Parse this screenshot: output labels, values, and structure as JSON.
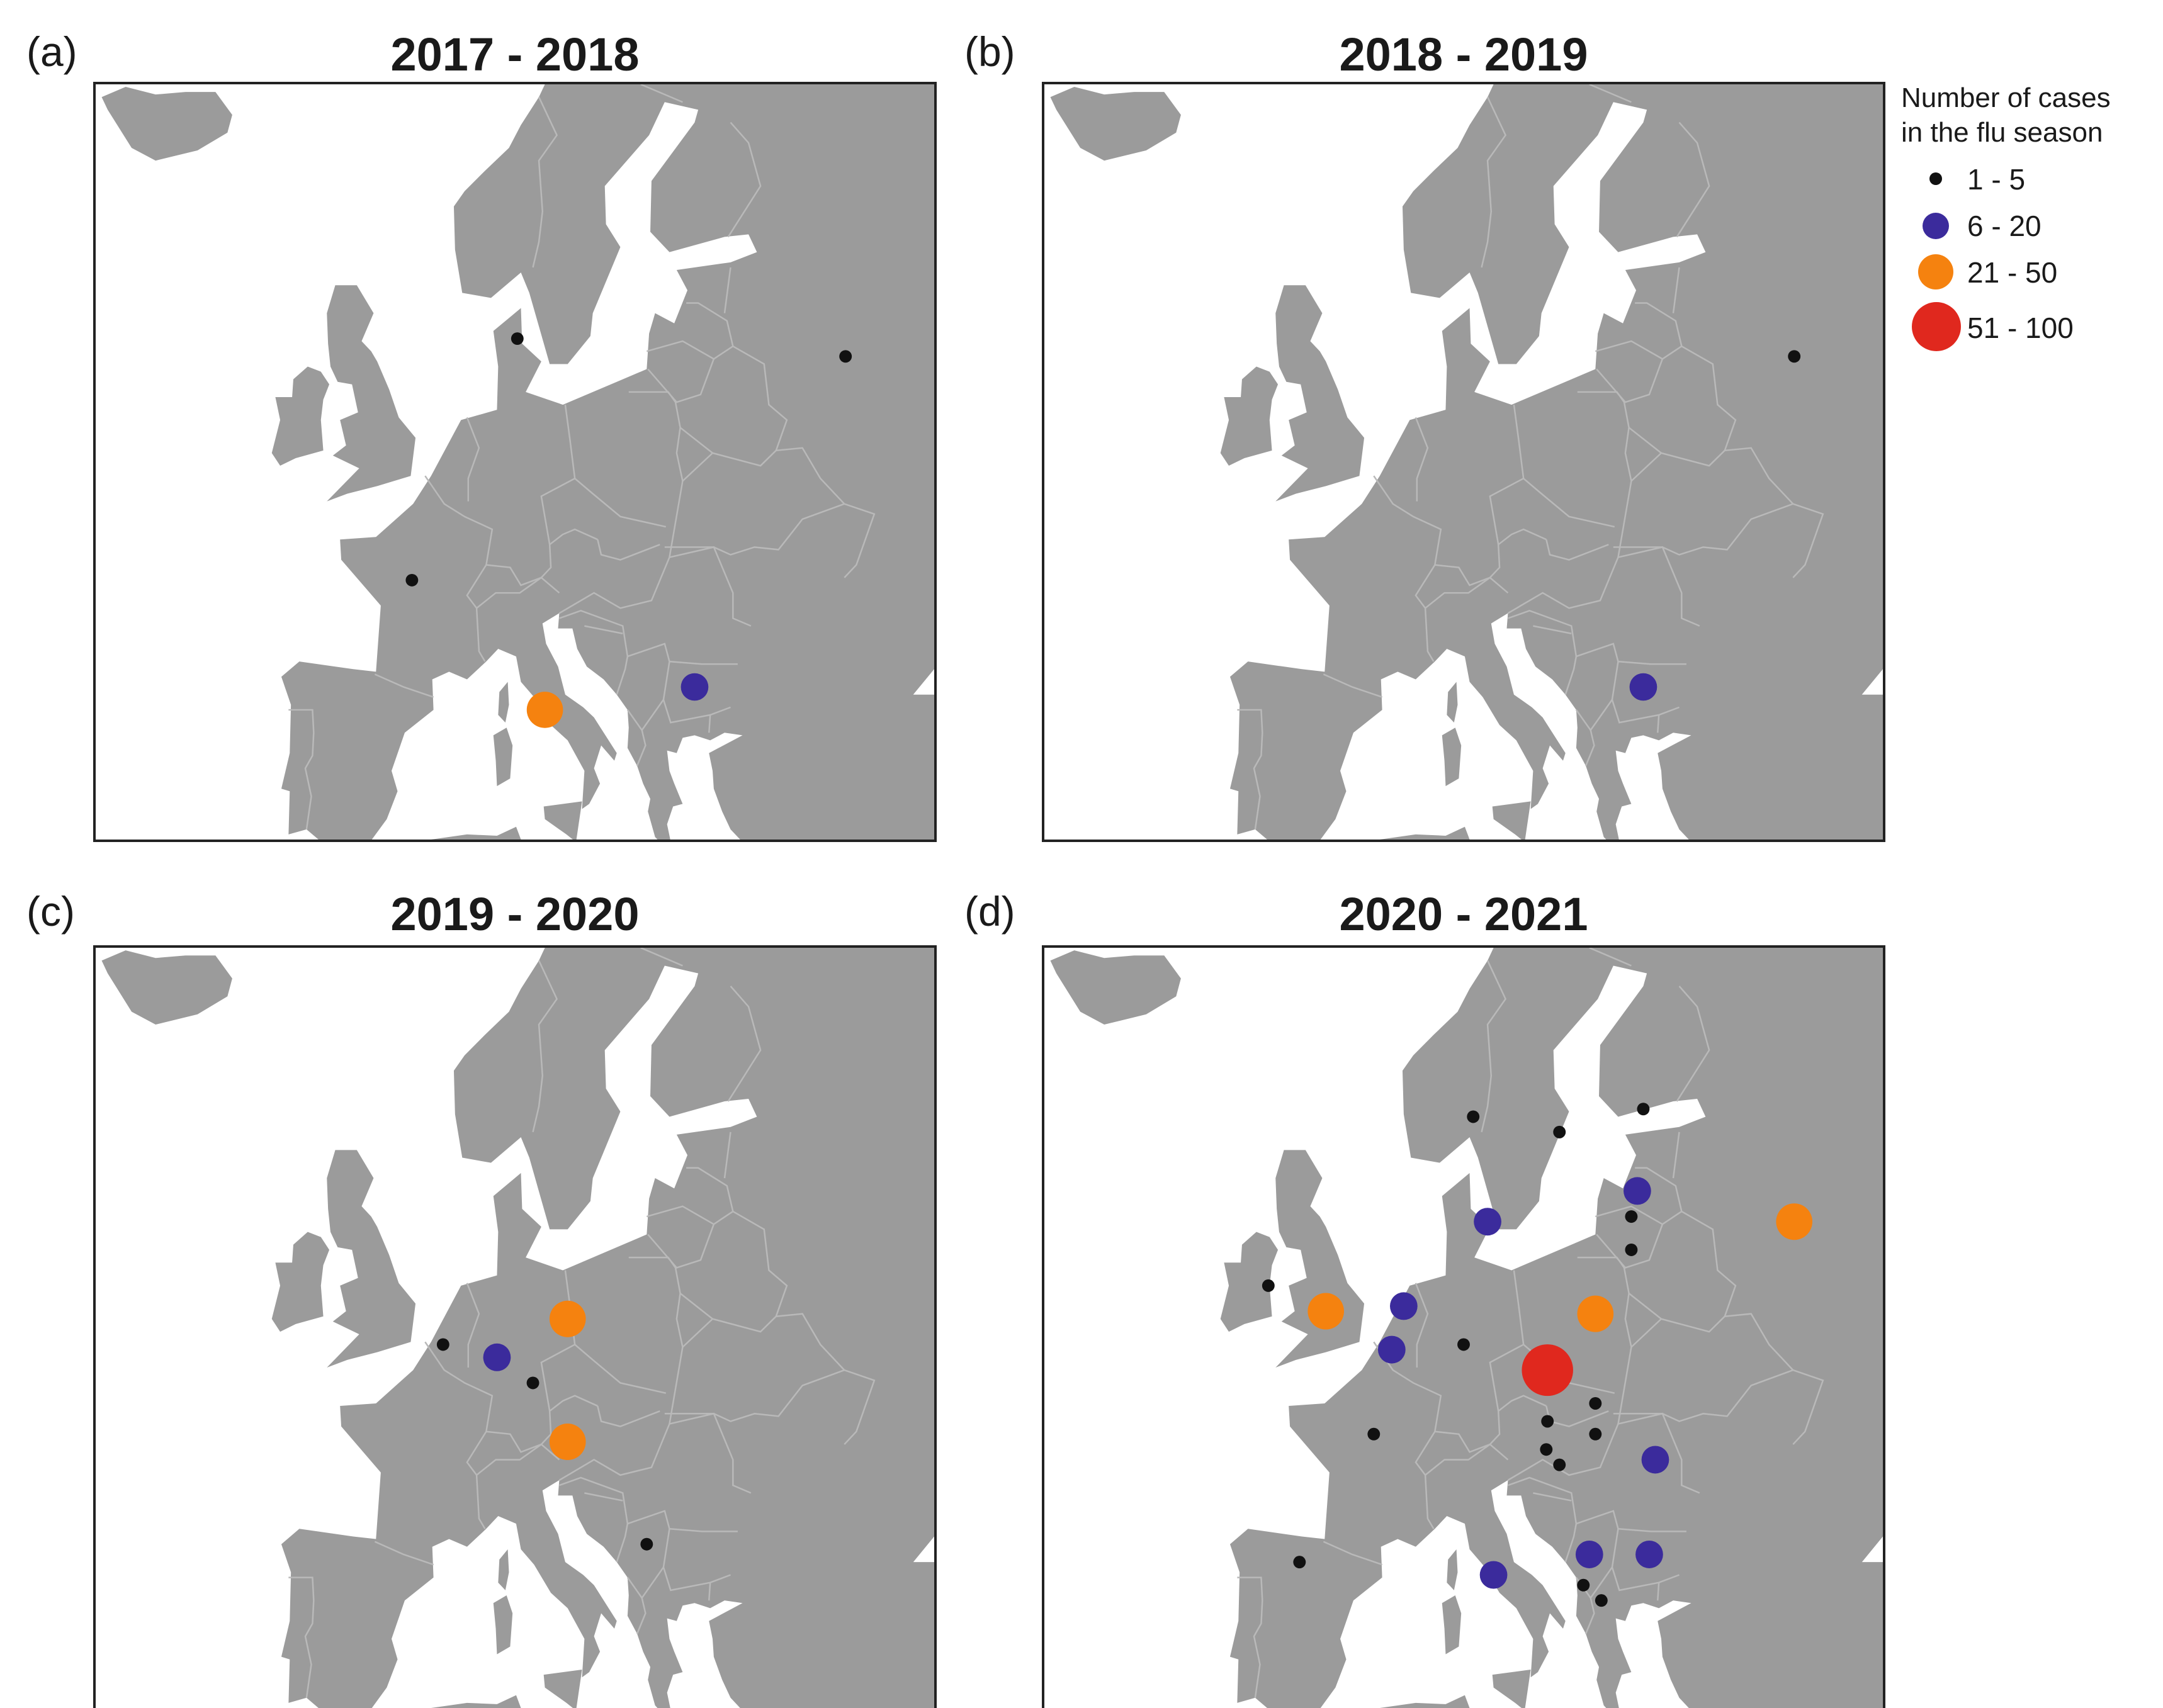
{
  "panels": [
    {
      "letter": "(a)",
      "title": "2017 - 2018",
      "markers": [
        {
          "lon": 37.6,
          "lat": 55.8,
          "cls": "c1"
        },
        {
          "lon": 10.2,
          "lat": 56.5,
          "cls": "c1"
        },
        {
          "lon": 1.4,
          "lat": 47.0,
          "cls": "c1"
        },
        {
          "lon": 12.5,
          "lat": 41.9,
          "cls": "c3"
        },
        {
          "lon": 25.0,
          "lat": 42.8,
          "cls": "c2"
        }
      ]
    },
    {
      "letter": "(b)",
      "title": "2018 - 2019",
      "markers": [
        {
          "lon": 37.6,
          "lat": 55.8,
          "cls": "c1"
        },
        {
          "lon": 25.0,
          "lat": 42.8,
          "cls": "c2"
        }
      ]
    },
    {
      "letter": "(c)",
      "title": "2019 - 2020",
      "markers": [
        {
          "lon": 14.4,
          "lat": 52.0,
          "cls": "c3"
        },
        {
          "lon": 4.0,
          "lat": 51.0,
          "cls": "c1"
        },
        {
          "lon": 8.5,
          "lat": 50.5,
          "cls": "c2"
        },
        {
          "lon": 11.5,
          "lat": 49.5,
          "cls": "c1"
        },
        {
          "lon": 14.4,
          "lat": 47.2,
          "cls": "c3"
        },
        {
          "lon": 21.0,
          "lat": 43.2,
          "cls": "c1"
        }
      ]
    },
    {
      "letter": "(d)",
      "title": "2020 - 2021",
      "markers": [
        {
          "lon": 37.6,
          "lat": 55.8,
          "cls": "c3"
        },
        {
          "lon": 10.8,
          "lat": 59.9,
          "cls": "c1"
        },
        {
          "lon": 18.0,
          "lat": 59.3,
          "cls": "c1"
        },
        {
          "lon": 25.0,
          "lat": 60.2,
          "cls": "c1"
        },
        {
          "lon": 24.5,
          "lat": 57.0,
          "cls": "c2"
        },
        {
          "lon": 24.0,
          "lat": 56.0,
          "cls": "c1"
        },
        {
          "lon": 24.0,
          "lat": 54.7,
          "cls": "c1"
        },
        {
          "lon": 12.0,
          "lat": 55.8,
          "cls": "c2"
        },
        {
          "lon": -6.3,
          "lat": 53.3,
          "cls": "c1"
        },
        {
          "lon": -1.5,
          "lat": 52.3,
          "cls": "c3"
        },
        {
          "lon": 5.0,
          "lat": 52.5,
          "cls": "c2"
        },
        {
          "lon": 4.0,
          "lat": 50.8,
          "cls": "c2"
        },
        {
          "lon": 10.0,
          "lat": 51.0,
          "cls": "c1"
        },
        {
          "lon": 21.0,
          "lat": 52.2,
          "cls": "c3"
        },
        {
          "lon": 17.0,
          "lat": 50.0,
          "cls": "c4"
        },
        {
          "lon": 21.0,
          "lat": 48.7,
          "cls": "c1"
        },
        {
          "lon": 17.0,
          "lat": 48.0,
          "cls": "c1"
        },
        {
          "lon": 21.0,
          "lat": 47.5,
          "cls": "c1"
        },
        {
          "lon": 16.9,
          "lat": 46.9,
          "cls": "c1"
        },
        {
          "lon": 18.0,
          "lat": 46.3,
          "cls": "c1"
        },
        {
          "lon": 26.0,
          "lat": 46.5,
          "cls": "c2"
        },
        {
          "lon": 2.5,
          "lat": 47.5,
          "cls": "c1"
        },
        {
          "lon": -3.7,
          "lat": 42.5,
          "cls": "c1"
        },
        {
          "lon": 12.5,
          "lat": 42.0,
          "cls": "c2"
        },
        {
          "lon": 20.5,
          "lat": 42.8,
          "cls": "c2"
        },
        {
          "lon": 25.5,
          "lat": 42.8,
          "cls": "c2"
        },
        {
          "lon": 20.0,
          "lat": 41.6,
          "cls": "c1"
        },
        {
          "lon": 21.5,
          "lat": 41.0,
          "cls": "c1"
        }
      ]
    }
  ],
  "legend": {
    "title": "Number of cases\nin the flu season",
    "items": [
      {
        "label": "1 - 5",
        "color": "#111111"
      },
      {
        "label": "6 - 20",
        "color": "#3b2b9c"
      },
      {
        "label": "21 - 50",
        "color": "#f5820f"
      },
      {
        "label": "51 - 100",
        "color": "#e0281e"
      }
    ]
  },
  "colors": {
    "land": "#9b9b9b",
    "sea": "#ffffff",
    "border": "#b9b9b9"
  }
}
